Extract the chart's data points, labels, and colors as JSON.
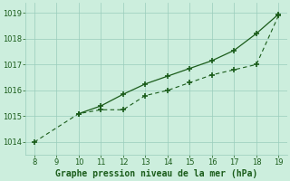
{
  "x_dashed": [
    8,
    10,
    11,
    12,
    13,
    14,
    15,
    16,
    17,
    18,
    19
  ],
  "y_dashed": [
    1014.0,
    1015.1,
    1015.25,
    1015.25,
    1015.8,
    1016.0,
    1016.3,
    1016.6,
    1016.8,
    1017.0,
    1018.9
  ],
  "x_solid": [
    10,
    11,
    12,
    13,
    14,
    15,
    16,
    17,
    18,
    19
  ],
  "y_solid": [
    1015.1,
    1015.4,
    1015.85,
    1016.25,
    1016.55,
    1016.85,
    1017.15,
    1017.55,
    1018.2,
    1018.95
  ],
  "line_color": "#1a5c1a",
  "bg_color": "#cceedd",
  "grid_color": "#99ccbb",
  "xlabel": "Graphe pression niveau de la mer (hPa)",
  "xlim": [
    7.6,
    19.4
  ],
  "ylim": [
    1013.5,
    1019.4
  ],
  "xticks": [
    8,
    9,
    10,
    11,
    12,
    13,
    14,
    15,
    16,
    17,
    18,
    19
  ],
  "yticks": [
    1014,
    1015,
    1016,
    1017,
    1018,
    1019
  ],
  "tick_fontsize": 6,
  "xlabel_fontsize": 7
}
